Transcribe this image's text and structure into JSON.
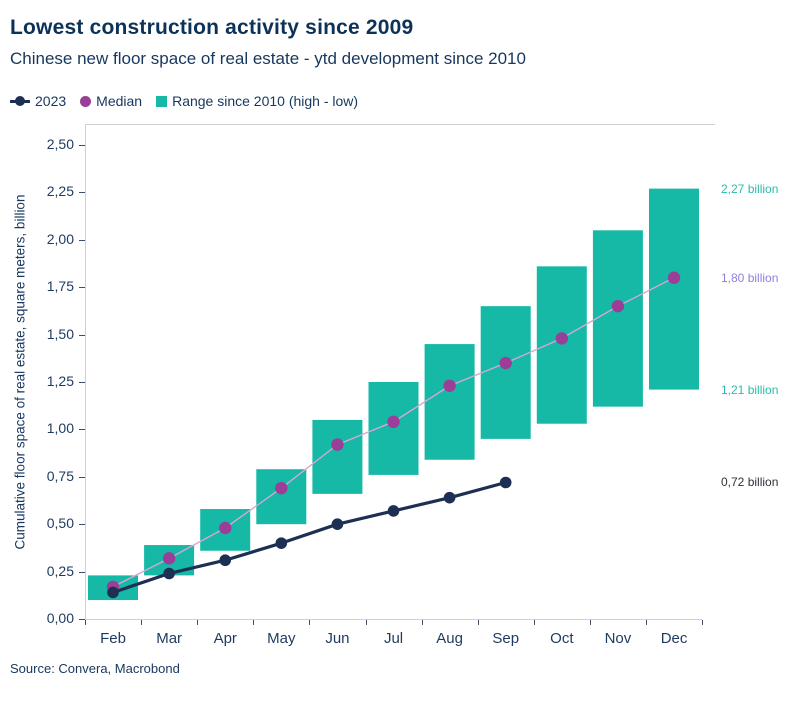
{
  "header": {
    "title": "Lowest construction activity since 2009",
    "subtitle": "Chinese new floor space of real estate - ytd development since 2010"
  },
  "legend": {
    "items": [
      {
        "label": "2023",
        "marker": "line-dot",
        "color": "#1d3054"
      },
      {
        "label": "Median",
        "marker": "dot",
        "color": "#9c3e97"
      },
      {
        "label": "Range since 2010 (high - low)",
        "marker": "square",
        "color": "#16b8a6"
      }
    ]
  },
  "chart_data": {
    "type": "bar",
    "subtype": "range-bars with median scatter-line and single-year line",
    "title": "Lowest construction activity since 2009",
    "subtitle": "Chinese new floor space of real estate - ytd development since 2010",
    "categories": [
      "Feb",
      "Mar",
      "Apr",
      "May",
      "Jun",
      "Jul",
      "Aug",
      "Sep",
      "Oct",
      "Nov",
      "Dec"
    ],
    "xlabel": "",
    "ylabel": "Cumulative floor space of real estate, square meters, billion",
    "ylim": [
      0,
      2.61
    ],
    "grid": false,
    "legend_position": "top-left",
    "ytick_labels": [
      "0,00",
      "0,25",
      "0,50",
      "0,75",
      "1,00",
      "1,25",
      "1,50",
      "1,75",
      "2,00",
      "2,25",
      "2,50"
    ],
    "ytick_values": [
      0,
      0.25,
      0.5,
      0.75,
      1.0,
      1.25,
      1.5,
      1.75,
      2.0,
      2.25,
      2.5
    ],
    "series": [
      {
        "name": "Range since 2010 (high - low)",
        "type": "range-bar",
        "color": "#16b8a6",
        "low": [
          0.1,
          0.23,
          0.36,
          0.5,
          0.66,
          0.76,
          0.84,
          0.95,
          1.03,
          1.12,
          1.21
        ],
        "high": [
          0.23,
          0.39,
          0.58,
          0.79,
          1.05,
          1.25,
          1.45,
          1.65,
          1.86,
          2.05,
          2.27
        ]
      },
      {
        "name": "Median",
        "type": "line-marker",
        "color": "#9c3e97",
        "line_color": "#d5a8d2",
        "values": [
          0.17,
          0.32,
          0.48,
          0.69,
          0.92,
          1.04,
          1.23,
          1.35,
          1.48,
          1.65,
          1.8
        ]
      },
      {
        "name": "2023",
        "type": "line-marker",
        "color": "#1d3054",
        "line_color": "#1d3054",
        "values": [
          0.14,
          0.24,
          0.31,
          0.4,
          0.5,
          0.57,
          0.64,
          0.72,
          null,
          null,
          null
        ]
      }
    ],
    "annotations": [
      {
        "text": "2,27 billion",
        "value": 2.27,
        "color": "#2abcab"
      },
      {
        "text": "1,80 billion",
        "value": 1.8,
        "color": "#8f7fe0"
      },
      {
        "text": "1,21 billion",
        "value": 1.21,
        "color": "#2abcab"
      },
      {
        "text": "0,72 billion",
        "value": 0.72,
        "color": "#2d3138"
      }
    ]
  },
  "colors": {
    "title_text": "#0d3259",
    "body_text": "#17375e",
    "axis_line": "#ccd1d6",
    "tick_mark": "#3c4d66"
  },
  "source": "Source: Convera, Macrobond"
}
